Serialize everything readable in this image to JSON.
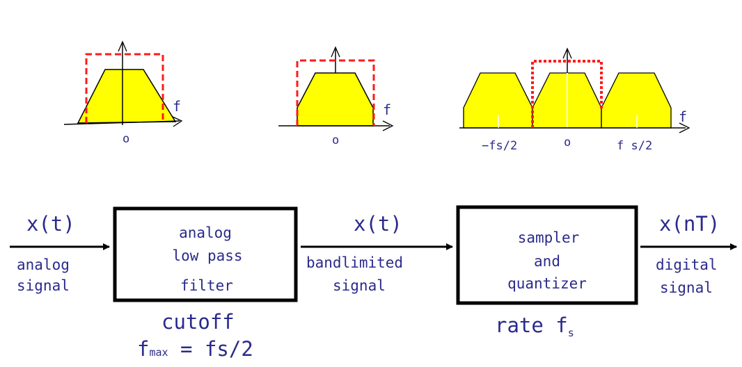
{
  "colors": {
    "text": "#2a2a8c",
    "fill": "#ffff00",
    "dashed": "#ff1a1a",
    "stroke": "#000000"
  },
  "spectra": {
    "plot1": {
      "axis_label": "f",
      "origin_label": "o"
    },
    "plot2": {
      "axis_label": "f",
      "origin_label": "o"
    },
    "plot3": {
      "axis_label": "f",
      "origin_label": "o",
      "left_label": "−fs/2",
      "right_label": "f s/2"
    }
  },
  "pipeline": {
    "input": {
      "signal": "x(t)",
      "desc_line1": "analog",
      "desc_line2": "signal"
    },
    "filter": {
      "line1": "analog",
      "line2": "low pass",
      "line3": "filter",
      "param_line1": "cutoff",
      "param_line2_prefix": "f",
      "param_line2_sub": "max",
      "param_line2_suffix": " = fs/2"
    },
    "middle": {
      "signal": "x(t)",
      "desc_line1": "bandlimited",
      "desc_line2": "signal"
    },
    "sampler": {
      "line1": "sampler",
      "line2": "and",
      "line3": "quantizer",
      "param_prefix": "rate f",
      "param_sub": "s"
    },
    "output": {
      "signal": "x(nT)",
      "desc_line1": "digital",
      "desc_line2": "signal"
    }
  }
}
